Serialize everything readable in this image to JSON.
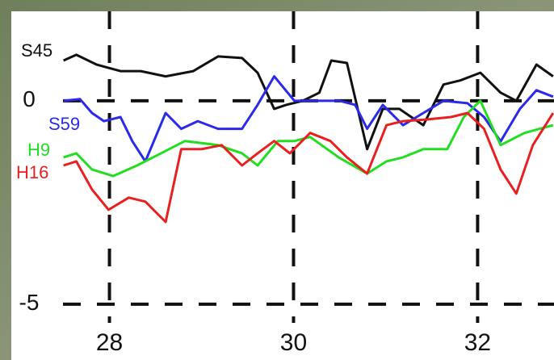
{
  "chart_data": {
    "type": "line",
    "xlim": [
      27.46,
      32.83
    ],
    "xticks": [
      28,
      30,
      32
    ],
    "ylim": [
      -5.46,
      2.18
    ],
    "yticks": [
      0,
      -5
    ],
    "grid": true,
    "series": [
      {
        "name": "S45",
        "color": "#111111",
        "x": [
          27.5,
          27.64,
          27.86,
          28.12,
          28.34,
          28.61,
          28.91,
          29.18,
          29.44,
          29.61,
          29.79,
          29.92,
          30.1,
          30.28,
          30.41,
          30.58,
          30.8,
          30.97,
          31.15,
          31.41,
          31.63,
          31.81,
          32.03,
          32.25,
          32.42,
          32.64,
          32.82
        ],
        "values": [
          0.99,
          1.13,
          0.89,
          0.73,
          0.73,
          0.6,
          0.73,
          1.09,
          1.05,
          0.69,
          -0.2,
          -0.1,
          0,
          0.2,
          0.99,
          0.93,
          -1.19,
          -0.2,
          -0.2,
          -0.6,
          0.4,
          0.5,
          0.69,
          0.2,
          0,
          0.89,
          0.6
        ]
      },
      {
        "name": "S59",
        "color": "#2a2ae8",
        "x": [
          27.5,
          27.68,
          27.81,
          27.94,
          28.12,
          28.25,
          28.39,
          28.61,
          28.78,
          28.96,
          29.18,
          29.44,
          29.61,
          29.79,
          30.01,
          30.19,
          30.5,
          30.67,
          30.8,
          30.97,
          31.19,
          31.41,
          31.63,
          31.89,
          32.07,
          32.25,
          32.46,
          32.64,
          32.82
        ],
        "values": [
          0,
          0.04,
          -0.3,
          -0.5,
          -0.4,
          -1.0,
          -1.49,
          -0.3,
          -0.69,
          -0.5,
          -0.69,
          -0.69,
          -0.1,
          0.6,
          0,
          0,
          0,
          -0.1,
          -0.69,
          -0.1,
          -0.6,
          -0.3,
          0,
          -0.06,
          -0.4,
          -1.0,
          -0.2,
          0.26,
          0.1
        ]
      },
      {
        "name": "H9",
        "color": "#22dd22",
        "x": [
          27.5,
          27.64,
          27.81,
          28.04,
          28.3,
          28.56,
          28.82,
          29.18,
          29.44,
          29.61,
          29.83,
          30.01,
          30.18,
          30.49,
          30.8,
          31.01,
          31.19,
          31.41,
          31.67,
          31.85,
          32.03,
          32.25,
          32.51,
          32.82
        ],
        "values": [
          -1.39,
          -1.29,
          -1.69,
          -1.85,
          -1.59,
          -1.29,
          -0.99,
          -1.09,
          -1.29,
          -1.59,
          -0.99,
          -0.99,
          -0.89,
          -1.39,
          -1.79,
          -1.49,
          -1.39,
          -1.19,
          -1.19,
          -0.4,
          0,
          -1.09,
          -0.79,
          -0.6
        ]
      },
      {
        "name": "H16",
        "color": "#e82020",
        "x": [
          27.5,
          27.64,
          27.81,
          27.99,
          28.21,
          28.39,
          28.61,
          28.78,
          29.0,
          29.22,
          29.44,
          29.61,
          29.79,
          29.96,
          30.18,
          30.4,
          30.58,
          30.8,
          31.01,
          31.19,
          31.45,
          31.71,
          31.89,
          32.07,
          32.25,
          32.42,
          32.6,
          32.82
        ],
        "values": [
          -1.59,
          -1.49,
          -2.18,
          -2.68,
          -2.38,
          -2.48,
          -2.98,
          -1.19,
          -1.19,
          -1.09,
          -1.59,
          -1.29,
          -0.99,
          -1.29,
          -0.79,
          -0.99,
          -1.39,
          -1.79,
          -0.6,
          -0.5,
          -0.46,
          -0.4,
          -0.3,
          -0.69,
          -1.69,
          -2.28,
          -1.09,
          -0.3
        ]
      }
    ]
  }
}
